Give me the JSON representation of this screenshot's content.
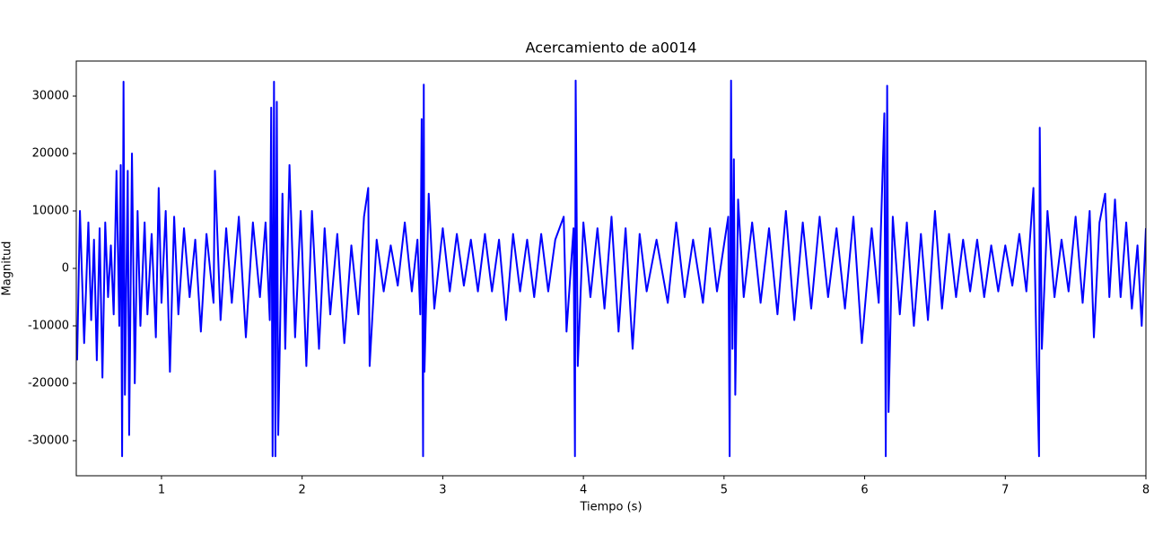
{
  "chart_data": {
    "type": "line",
    "title": "Acercamiento de a0014",
    "x_label": "Tiempo (s)",
    "y_label": "Magnitud",
    "color": "#0000ff",
    "xlim": [
      0.394,
      8
    ],
    "ylim": [
      -36100,
      36100
    ],
    "xticks": [
      1,
      2,
      3,
      4,
      5,
      6,
      7,
      8
    ],
    "yticks": [
      -30000,
      -20000,
      -10000,
      0,
      10000,
      20000,
      30000
    ],
    "x": [
      0.4,
      0.42,
      0.45,
      0.48,
      0.5,
      0.52,
      0.54,
      0.56,
      0.58,
      0.6,
      0.62,
      0.64,
      0.66,
      0.68,
      0.7,
      0.71,
      0.72,
      0.73,
      0.74,
      0.76,
      0.77,
      0.79,
      0.81,
      0.83,
      0.85,
      0.88,
      0.9,
      0.93,
      0.96,
      0.98,
      1.0,
      1.03,
      1.06,
      1.09,
      1.12,
      1.16,
      1.2,
      1.24,
      1.28,
      1.32,
      1.37,
      1.38,
      1.42,
      1.46,
      1.5,
      1.55,
      1.6,
      1.65,
      1.7,
      1.74,
      1.77,
      1.78,
      1.79,
      1.8,
      1.81,
      1.82,
      1.83,
      1.86,
      1.88,
      1.91,
      1.95,
      1.99,
      2.03,
      2.07,
      2.12,
      2.16,
      2.2,
      2.25,
      2.3,
      2.35,
      2.4,
      2.44,
      2.47,
      2.48,
      2.53,
      2.58,
      2.63,
      2.68,
      2.73,
      2.78,
      2.82,
      2.84,
      2.85,
      2.86,
      2.865,
      2.87,
      2.9,
      2.94,
      3.0,
      3.05,
      3.1,
      3.15,
      3.2,
      3.25,
      3.3,
      3.35,
      3.4,
      3.45,
      3.5,
      3.55,
      3.6,
      3.65,
      3.7,
      3.75,
      3.8,
      3.86,
      3.88,
      3.93,
      3.94,
      3.945,
      3.96,
      4.0,
      4.05,
      4.1,
      4.15,
      4.2,
      4.25,
      4.3,
      4.35,
      4.4,
      4.45,
      4.52,
      4.6,
      4.66,
      4.72,
      4.78,
      4.85,
      4.9,
      4.95,
      5.03,
      5.04,
      5.05,
      5.06,
      5.07,
      5.08,
      5.1,
      5.14,
      5.2,
      5.26,
      5.32,
      5.38,
      5.44,
      5.5,
      5.56,
      5.62,
      5.68,
      5.74,
      5.8,
      5.86,
      5.92,
      5.98,
      6.05,
      6.1,
      6.14,
      6.15,
      6.16,
      6.17,
      6.2,
      6.25,
      6.3,
      6.35,
      6.4,
      6.45,
      6.5,
      6.55,
      6.6,
      6.65,
      6.7,
      6.75,
      6.8,
      6.85,
      6.9,
      6.95,
      7.0,
      7.05,
      7.1,
      7.15,
      7.2,
      7.22,
      7.24,
      7.245,
      7.26,
      7.3,
      7.35,
      7.4,
      7.45,
      7.5,
      7.55,
      7.6,
      7.63,
      7.67,
      7.71,
      7.74,
      7.78,
      7.82,
      7.86,
      7.9,
      7.94,
      7.97,
      8.0
    ],
    "values": [
      -16000,
      10000,
      -13000,
      8000,
      -9000,
      5000,
      -16000,
      7000,
      -19000,
      8000,
      -5000,
      4000,
      -8000,
      17000,
      -10000,
      18000,
      -32700,
      32500,
      -22000,
      17000,
      -29000,
      20000,
      -20000,
      10000,
      -10000,
      8000,
      -8000,
      6000,
      -12000,
      14000,
      -6000,
      10000,
      -18000,
      9000,
      -8000,
      7000,
      -5000,
      5000,
      -11000,
      6000,
      -6000,
      17000,
      -9000,
      7000,
      -6000,
      9000,
      -12000,
      8000,
      -5000,
      8000,
      -9000,
      28000,
      -32700,
      32500,
      -32700,
      29000,
      -29000,
      13000,
      -14000,
      18000,
      -12000,
      10000,
      -17000,
      10000,
      -14000,
      7000,
      -8000,
      6000,
      -13000,
      4000,
      -8000,
      9000,
      14000,
      -17000,
      5000,
      -4000,
      4000,
      -3000,
      8000,
      -4000,
      5000,
      -8000,
      26000,
      -32700,
      32000,
      -18000,
      13000,
      -7000,
      7000,
      -4000,
      6000,
      -3000,
      5000,
      -4000,
      6000,
      -4000,
      5000,
      -9000,
      6000,
      -4000,
      5000,
      -5000,
      6000,
      -4000,
      5000,
      9000,
      -11000,
      7000,
      -32700,
      32700,
      -17000,
      8000,
      -5000,
      7000,
      -7000,
      9000,
      -11000,
      7000,
      -14000,
      6000,
      -4000,
      5000,
      -6000,
      8000,
      -5000,
      5000,
      -6000,
      7000,
      -4000,
      9000,
      -32700,
      32700,
      -14000,
      19000,
      -22000,
      12000,
      -5000,
      8000,
      -6000,
      7000,
      -8000,
      10000,
      -9000,
      8000,
      -7000,
      9000,
      -5000,
      7000,
      -7000,
      9000,
      -13000,
      7000,
      -6000,
      27000,
      -32700,
      31800,
      -25000,
      9000,
      -8000,
      8000,
      -10000,
      6000,
      -9000,
      10000,
      -7000,
      6000,
      -5000,
      5000,
      -4000,
      5000,
      -5000,
      4000,
      -4000,
      4000,
      -3000,
      6000,
      -4000,
      14000,
      -12000,
      -32700,
      24500,
      -14000,
      10000,
      -5000,
      5000,
      -4000,
      9000,
      -6000,
      10000,
      -12000,
      8000,
      13000,
      -5000,
      12000,
      -5000,
      8000,
      -7000,
      4000,
      -10000,
      7000
    ]
  }
}
